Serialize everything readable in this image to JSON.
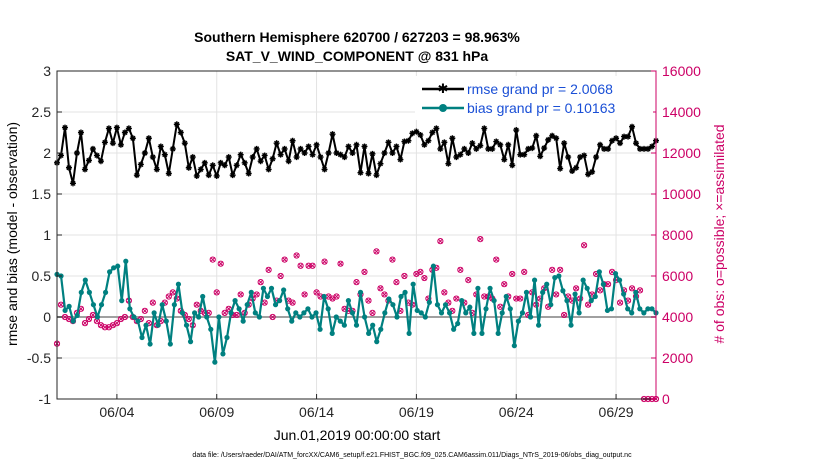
{
  "chart_data": {
    "type": "line",
    "title": "Southern Hemisphere 620700 / 627203 = 98.963%",
    "subtitle": "SAT_V_WIND_COMPONENT @ 831 hPa",
    "xlabel": "Jun.01,2019 00:00:00 start",
    "ylabel": "rmse and bias (model - observation)",
    "ylabel_right": "# of obs: o=possible; ×=assimilated",
    "footer": "data file: /Users/raeder/DAI/ATM_forcXX/CAM6_setup/f.e21.FHIST_BGC.f09_025.CAM6assim.011/Diags_NTrS_2019-06/obs_diag_output.nc",
    "x_ticks": [
      "06/04",
      "06/09",
      "06/14",
      "06/19",
      "06/24",
      "06/29"
    ],
    "x_tick_days": [
      4,
      9,
      14,
      19,
      24,
      29
    ],
    "xlim": [
      1,
      31
    ],
    "ylim": [
      -1,
      3
    ],
    "y_ticks": [
      "-1",
      "-0.5",
      "0",
      "0.5",
      "1",
      "1.5",
      "2",
      "2.5",
      "3"
    ],
    "ylim_right": [
      0,
      16000
    ],
    "y_ticks_right": [
      "0",
      "2000",
      "4000",
      "6000",
      "8000",
      "10000",
      "12000",
      "14000",
      "16000"
    ],
    "grid": true,
    "legend_position": "top-right",
    "colors": {
      "rmse": "#000000",
      "bias": "#008080",
      "obs": "#cc0066",
      "zero": "#a0a0a0"
    },
    "series": [
      {
        "name": "rmse grand pr = 2.0068",
        "axis": "left",
        "values": [
          1.88,
          1.97,
          2.31,
          1.82,
          1.63,
          2.0,
          2.25,
          1.8,
          1.91,
          2.05,
          1.97,
          1.9,
          2.13,
          2.3,
          2.12,
          2.31,
          2.1,
          2.25,
          2.3,
          2.18,
          1.73,
          1.86,
          2.0,
          2.18,
          1.95,
          1.8,
          2.08,
          1.98,
          1.75,
          2.05,
          2.35,
          2.25,
          2.12,
          1.82,
          1.95,
          1.72,
          1.8,
          1.88,
          1.73,
          1.85,
          1.72,
          1.88,
          1.85,
          1.95,
          1.73,
          1.85,
          1.98,
          1.88,
          1.75,
          1.95,
          2.05,
          1.9,
          1.97,
          1.8,
          1.93,
          2.12,
          1.98,
          2.05,
          1.9,
          2.15,
          1.95,
          2.05,
          2.0,
          2.08,
          1.98,
          2.1,
          1.95,
          1.8,
          2.0,
          2.23,
          2.0,
          1.98,
          1.95,
          2.08,
          2.0,
          2.1,
          1.76,
          2.08,
          1.75,
          1.99,
          1.73,
          1.87,
          2.0,
          2.13,
          2.0,
          2.08,
          1.92,
          2.14,
          2.15,
          2.24,
          2.26,
          2.22,
          2.1,
          2.15,
          2.25,
          2.3,
          2.05,
          2.13,
          1.87,
          2.18,
          1.95,
          1.98,
          2.05,
          2.0,
          2.12,
          2.05,
          2.09,
          2.3,
          2.05,
          2.05,
          2.14,
          2.1,
          1.92,
          2.1,
          1.85,
          2.28,
          1.98,
          1.98,
          2.05,
          2.06,
          2.21,
          1.96,
          2.06,
          2.16,
          2.21,
          2.18,
          1.81,
          2.12,
          1.95,
          1.78,
          1.82,
          1.95,
          1.97,
          1.74,
          1.77,
          1.95,
          2.1,
          2.05,
          2.05,
          2.15,
          2.18,
          2.12,
          2.2,
          2.2,
          2.32,
          2.12,
          2.05,
          2.05,
          2.05,
          2.08,
          2.15
        ]
      },
      {
        "name": "bias grand pr = 0.10163",
        "axis": "left",
        "values": [
          0.52,
          0.5,
          0.08,
          0.13,
          -0.05,
          0.02,
          0.3,
          0.45,
          0.3,
          0.15,
          0.0,
          0.15,
          0.3,
          0.55,
          0.6,
          0.62,
          0.2,
          0.68,
          0.1,
          0.0,
          -0.05,
          -0.25,
          -0.1,
          -0.33,
          0.05,
          -0.1,
          0.15,
          -0.05,
          -0.33,
          0.15,
          0.4,
          0.05,
          -0.1,
          -0.3,
          0.05,
          0.0,
          0.25,
          0.0,
          -0.15,
          -0.55,
          0.0,
          -0.45,
          -0.25,
          0.05,
          0.2,
          0.1,
          -0.05,
          0.15,
          0.3,
          0.05,
          0.0,
          0.35,
          0.25,
          0.35,
          0.15,
          0.2,
          0.33,
          0.1,
          -0.05,
          0.05,
          0.0,
          0.05,
          0.1,
          0.0,
          0.05,
          -0.15,
          0.25,
          0.1,
          -0.2,
          0.0,
          -0.05,
          -0.1,
          0.2,
          0.05,
          -0.1,
          0.3,
          0.0,
          -0.2,
          -0.1,
          -0.3,
          -0.15,
          0.05,
          0.22,
          0.15,
          0.0,
          0.25,
          0.3,
          -0.2,
          0.4,
          0.08,
          0.05,
          0.0,
          0.18,
          0.62,
          0.15,
          0.05,
          0.15,
          0.05,
          -0.15,
          -0.08,
          0.2,
          0.05,
          0.12,
          -0.2,
          0.35,
          -0.2,
          0.1,
          0.35,
          0.2,
          -0.2,
          0.05,
          0.25,
          0.1,
          -0.35,
          -0.05,
          0.05,
          0.3,
          0.0,
          0.45,
          -0.1,
          0.3,
          0.4,
          0.15,
          0.48,
          0.5,
          0.32,
          0.2,
          -0.1,
          0.28,
          0.05,
          0.45,
          0.35,
          0.2,
          0.25,
          0.55,
          0.4,
          0.08,
          0.1,
          0.53,
          0.45,
          0.28,
          0.1,
          0.05,
          0.3,
          0.1,
          0.05,
          0.1,
          0.1,
          0.05
        ]
      },
      {
        "name": "# of obs possible",
        "axis": "right",
        "values": [
          2700,
          4600,
          4000,
          3900,
          3800,
          4200,
          4400,
          3700,
          3900,
          4100,
          3800,
          3600,
          3500,
          3500,
          3600,
          3700,
          3900,
          4000,
          4800,
          4000,
          3800,
          3900,
          4300,
          3700,
          4700,
          3600,
          3800,
          4700,
          5000,
          5200,
          4900,
          4300,
          4100,
          3900,
          3600,
          4600,
          4300,
          4200,
          4200,
          6800,
          5200,
          6600,
          4200,
          4400,
          4100,
          4100,
          5100,
          4200,
          4600,
          4900,
          5100,
          5700,
          4700,
          6300,
          4000,
          4800,
          6000,
          6800,
          4800,
          4700,
          7000,
          6500,
          5100,
          6500,
          6500,
          5200,
          5000,
          6700,
          5000,
          4900,
          5000,
          6600,
          4400,
          4300,
          4300,
          5700,
          5100,
          6200,
          4800,
          4200,
          7200,
          5400,
          5100,
          4800,
          6800,
          5700,
          4300,
          6000,
          4700,
          4600,
          6100,
          6200,
          5900,
          4900,
          6300,
          6400,
          7700,
          5200,
          4700,
          4300,
          4900,
          6300,
          4700,
          5800,
          4200,
          5100,
          7800,
          5000,
          5000,
          4900,
          6800,
          4500,
          5600,
          5000,
          6100,
          4900,
          4900,
          6200,
          4100,
          5200,
          4600,
          4900,
          5400,
          4500,
          6300,
          5100,
          6300,
          4100,
          5000,
          4800,
          5400,
          4900,
          7500,
          4600,
          5100,
          6100,
          5300,
          5600,
          5600,
          6200,
          5800,
          4700,
          5300,
          4800,
          5400,
          5000,
          5300,
          0,
          0,
          0,
          0
        ]
      },
      {
        "name": "# of obs assimilated",
        "axis": "right",
        "values": [
          2700,
          4600,
          4000,
          3900,
          3800,
          4200,
          4400,
          3700,
          3900,
          4100,
          3800,
          3600,
          3500,
          3500,
          3600,
          3700,
          3900,
          4000,
          4800,
          4000,
          3800,
          3900,
          4300,
          3700,
          4700,
          3600,
          3800,
          4700,
          5000,
          5200,
          4900,
          4300,
          4100,
          3900,
          3600,
          4600,
          4300,
          4200,
          4200,
          6800,
          5200,
          6600,
          4200,
          4400,
          4100,
          4100,
          5100,
          4200,
          4600,
          4900,
          5100,
          5700,
          4700,
          6300,
          4000,
          4800,
          6000,
          6800,
          4800,
          4700,
          7000,
          6500,
          5100,
          6500,
          6500,
          5200,
          5000,
          6700,
          5000,
          4900,
          5000,
          6600,
          4400,
          4300,
          4300,
          5700,
          5100,
          6200,
          4800,
          4200,
          7200,
          5400,
          5100,
          4800,
          6800,
          5700,
          4300,
          6000,
          4700,
          4600,
          6100,
          6200,
          5900,
          4900,
          6300,
          6400,
          7700,
          5200,
          4700,
          4300,
          4900,
          6300,
          4700,
          5800,
          4200,
          5100,
          7800,
          5000,
          5000,
          4900,
          6800,
          4500,
          5600,
          5000,
          6100,
          4900,
          4900,
          6200,
          4100,
          5200,
          4600,
          4900,
          5400,
          4500,
          6300,
          5100,
          6300,
          4100,
          5000,
          4800,
          5400,
          4900,
          7500,
          4600,
          5100,
          6100,
          5300,
          5600,
          5600,
          6200,
          5800,
          4700,
          5300,
          4800,
          5400,
          5000,
          5300,
          0,
          0,
          0,
          0
        ]
      }
    ]
  }
}
